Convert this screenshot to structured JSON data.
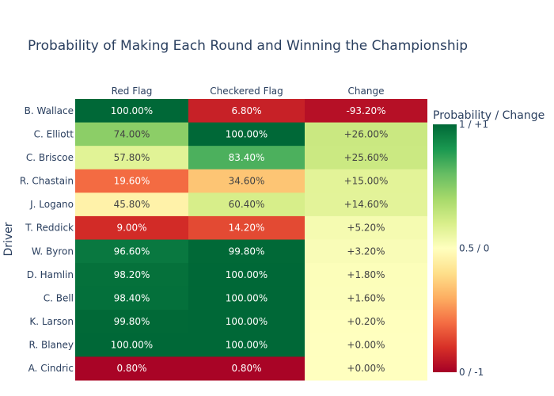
{
  "chart_data": {
    "type": "heatmap",
    "title": "Probability of Making Each Round and Winning the Championship",
    "xlabel": "",
    "ylabel": "Driver",
    "columns": [
      "Red Flag",
      "Checkered Flag",
      "Change"
    ],
    "rows": [
      "B. Wallace",
      "C. Elliott",
      "C. Briscoe",
      "R. Chastain",
      "J. Logano",
      "T. Reddick",
      "W. Byron",
      "D. Hamlin",
      "C. Bell",
      "K. Larson",
      "R. Blaney",
      "A. Cindric"
    ],
    "values": [
      [
        1.0,
        0.068,
        -0.932
      ],
      [
        0.74,
        1.0,
        0.26
      ],
      [
        0.578,
        0.834,
        0.256
      ],
      [
        0.196,
        0.346,
        0.15
      ],
      [
        0.458,
        0.604,
        0.146
      ],
      [
        0.09,
        0.142,
        0.052
      ],
      [
        0.966,
        0.998,
        0.032
      ],
      [
        0.982,
        1.0,
        0.018
      ],
      [
        0.984,
        1.0,
        0.016
      ],
      [
        0.998,
        1.0,
        0.002
      ],
      [
        1.0,
        1.0,
        0.0
      ],
      [
        0.008,
        0.008,
        0.0
      ]
    ],
    "labels": [
      [
        "100.00%",
        "6.80%",
        "-93.20%"
      ],
      [
        "74.00%",
        "100.00%",
        "+26.00%"
      ],
      [
        "57.80%",
        "83.40%",
        "+25.60%"
      ],
      [
        "19.60%",
        "34.60%",
        "+15.00%"
      ],
      [
        "45.80%",
        "60.40%",
        "+14.60%"
      ],
      [
        "9.00%",
        "14.20%",
        "+5.20%"
      ],
      [
        "96.60%",
        "99.80%",
        "+3.20%"
      ],
      [
        "98.20%",
        "100.00%",
        "+1.80%"
      ],
      [
        "98.40%",
        "100.00%",
        "+1.60%"
      ],
      [
        "99.80%",
        "100.00%",
        "+0.20%"
      ],
      [
        "100.00%",
        "100.00%",
        "+0.00%"
      ],
      [
        "0.80%",
        "0.80%",
        "+0.00%"
      ]
    ],
    "colorscale": "RdYlGn",
    "colorscale_stops": [
      "#a50026",
      "#d73027",
      "#f46d43",
      "#fdae61",
      "#fee08b",
      "#ffffbf",
      "#d9ef8b",
      "#a6d96a",
      "#66bd63",
      "#1a9850",
      "#006837"
    ],
    "colorbar": {
      "title": "Probability / Change",
      "ticks": [
        "1 / +1",
        "0.5 / 0",
        "0 / -1"
      ],
      "tick_values": [
        1,
        0.5,
        0
      ]
    }
  }
}
